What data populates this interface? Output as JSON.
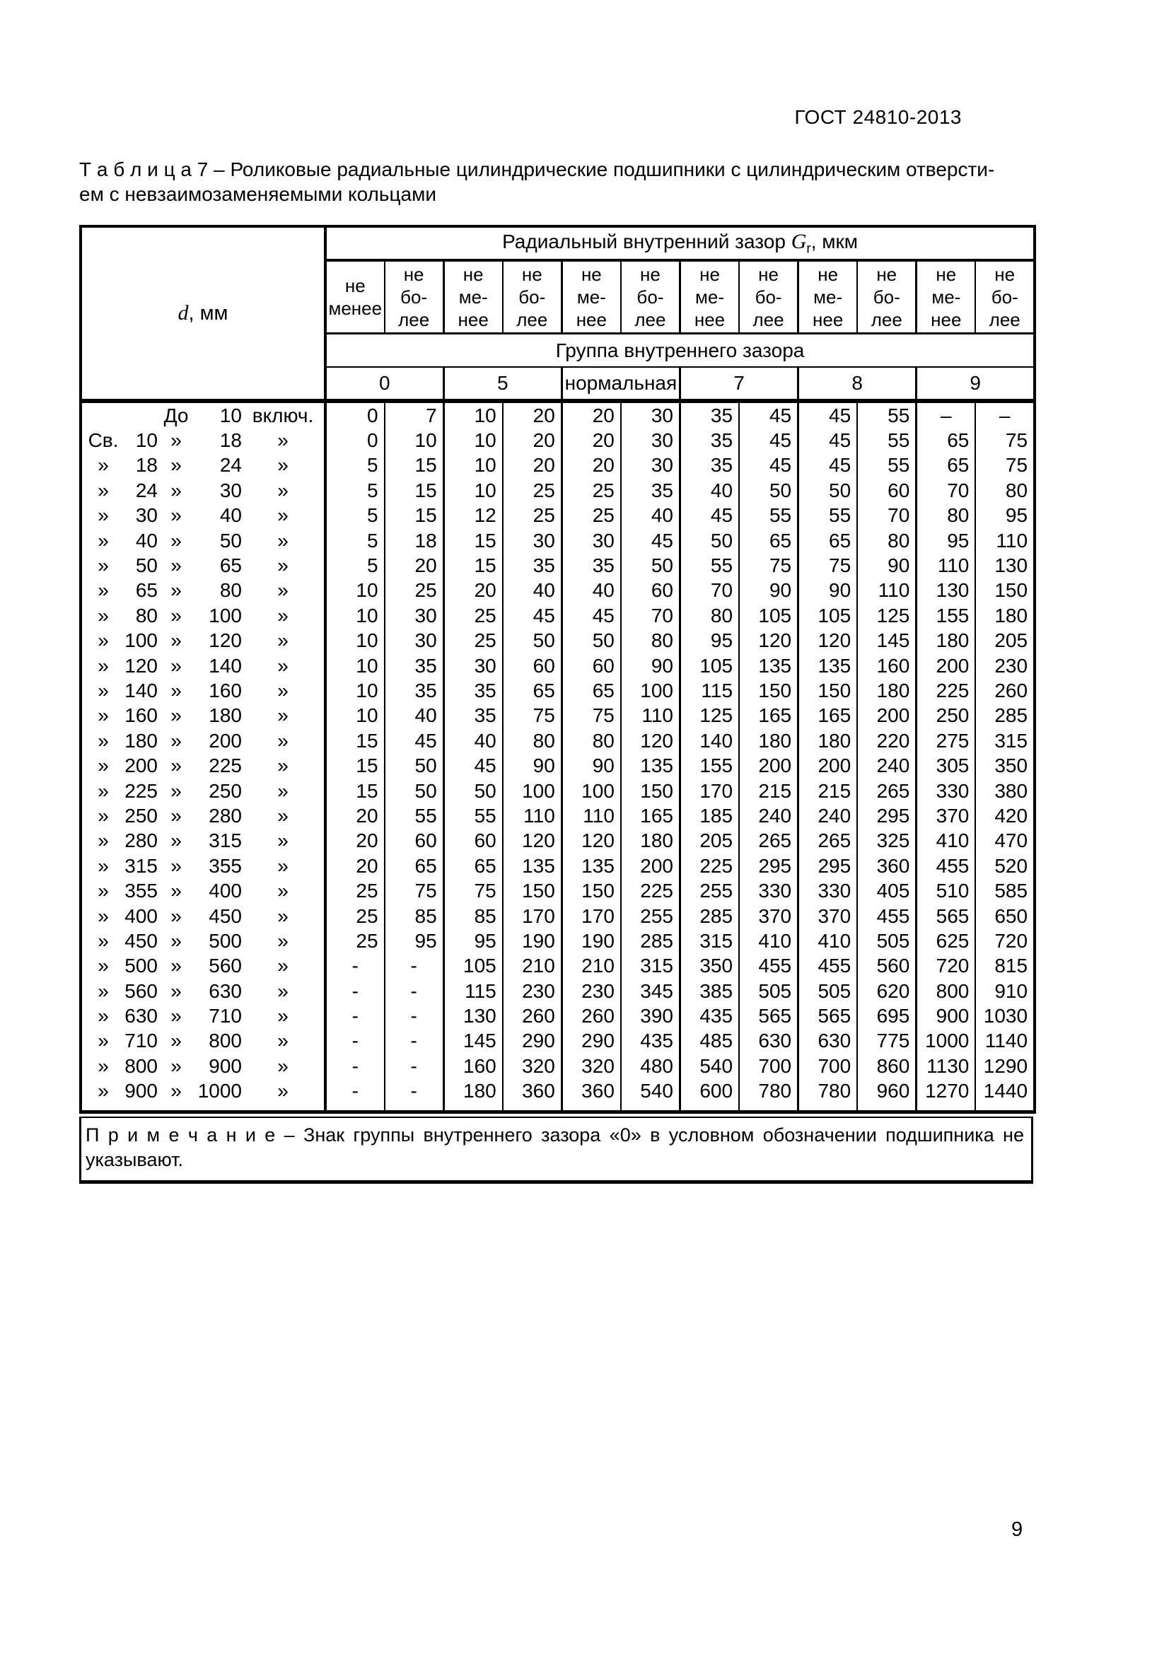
{
  "page": {
    "doc_code": "ГОСТ 24810-2013",
    "page_number": "9"
  },
  "title": {
    "line1": "Т а б л и ц а  7 – Роликовые радиальные цилиндрические подшипники с цилиндрическим отверсти-",
    "line2": "ем с невзаимозаменяемыми кольцами"
  },
  "table": {
    "d_symbol": "d",
    "d_unit": ", мм",
    "radial": {
      "prefix": "Радиальный внутренний зазор ",
      "symbol": "G",
      "sub": "r",
      "suffix": ", мкм"
    },
    "col_headers": [
      "не\nменее",
      "не\nбо-\nлее",
      "не\nме-\nнее",
      "не\nбо-\nлее",
      "не\nме-\nнее",
      "не\nбо-\nлее",
      "не\nме-\nнее",
      "не\nбо-\nлее",
      "не\nме-\nнее",
      "не\nбо-\nлее",
      "не\nме-\nнее",
      "не\nбо-\nлее"
    ],
    "group_header": "Группа внутреннего зазора",
    "groups": [
      "0",
      "5",
      "нормальная",
      "7",
      "8",
      "9"
    ],
    "rows": [
      {
        "d": [
          "",
          "",
          "До",
          "10",
          "включ."
        ],
        "v": [
          "0",
          "7",
          "10",
          "20",
          "20",
          "30",
          "35",
          "45",
          "45",
          "55",
          "–",
          "–"
        ]
      },
      {
        "d": [
          "Св.",
          "10",
          "»",
          "18",
          "»"
        ],
        "v": [
          "0",
          "10",
          "10",
          "20",
          "20",
          "30",
          "35",
          "45",
          "45",
          "55",
          "65",
          "75"
        ]
      },
      {
        "d": [
          "»",
          "18",
          "»",
          "24",
          "»"
        ],
        "v": [
          "5",
          "15",
          "10",
          "20",
          "20",
          "30",
          "35",
          "45",
          "45",
          "55",
          "65",
          "75"
        ]
      },
      {
        "d": [
          "»",
          "24",
          "»",
          "30",
          "»"
        ],
        "v": [
          "5",
          "15",
          "10",
          "25",
          "25",
          "35",
          "40",
          "50",
          "50",
          "60",
          "70",
          "80"
        ]
      },
      {
        "d": [
          "»",
          "30",
          "»",
          "40",
          "»"
        ],
        "v": [
          "5",
          "15",
          "12",
          "25",
          "25",
          "40",
          "45",
          "55",
          "55",
          "70",
          "80",
          "95"
        ]
      },
      {
        "d": [
          "»",
          "40",
          "»",
          "50",
          "»"
        ],
        "v": [
          "5",
          "18",
          "15",
          "30",
          "30",
          "45",
          "50",
          "65",
          "65",
          "80",
          "95",
          "110"
        ]
      },
      {
        "d": [
          "»",
          "50",
          "»",
          "65",
          "»"
        ],
        "v": [
          "5",
          "20",
          "15",
          "35",
          "35",
          "50",
          "55",
          "75",
          "75",
          "90",
          "110",
          "130"
        ]
      },
      {
        "d": [
          "»",
          "65",
          "»",
          "80",
          "»"
        ],
        "v": [
          "10",
          "25",
          "20",
          "40",
          "40",
          "60",
          "70",
          "90",
          "90",
          "110",
          "130",
          "150"
        ]
      },
      {
        "d": [
          "»",
          "80",
          "»",
          "100",
          "»"
        ],
        "v": [
          "10",
          "30",
          "25",
          "45",
          "45",
          "70",
          "80",
          "105",
          "105",
          "125",
          "155",
          "180"
        ]
      },
      {
        "d": [
          "»",
          "100",
          "»",
          "120",
          "»"
        ],
        "v": [
          "10",
          "30",
          "25",
          "50",
          "50",
          "80",
          "95",
          "120",
          "120",
          "145",
          "180",
          "205"
        ]
      },
      {
        "d": [
          "»",
          "120",
          "»",
          "140",
          "»"
        ],
        "v": [
          "10",
          "35",
          "30",
          "60",
          "60",
          "90",
          "105",
          "135",
          "135",
          "160",
          "200",
          "230"
        ]
      },
      {
        "d": [
          "»",
          "140",
          "»",
          "160",
          "»"
        ],
        "v": [
          "10",
          "35",
          "35",
          "65",
          "65",
          "100",
          "115",
          "150",
          "150",
          "180",
          "225",
          "260"
        ]
      },
      {
        "d": [
          "»",
          "160",
          "»",
          "180",
          "»"
        ],
        "v": [
          "10",
          "40",
          "35",
          "75",
          "75",
          "110",
          "125",
          "165",
          "165",
          "200",
          "250",
          "285"
        ]
      },
      {
        "d": [
          "»",
          "180",
          "»",
          "200",
          "»"
        ],
        "v": [
          "15",
          "45",
          "40",
          "80",
          "80",
          "120",
          "140",
          "180",
          "180",
          "220",
          "275",
          "315"
        ]
      },
      {
        "d": [
          "»",
          "200",
          "»",
          "225",
          "»"
        ],
        "v": [
          "15",
          "50",
          "45",
          "90",
          "90",
          "135",
          "155",
          "200",
          "200",
          "240",
          "305",
          "350"
        ]
      },
      {
        "d": [
          "»",
          "225",
          "»",
          "250",
          "»"
        ],
        "v": [
          "15",
          "50",
          "50",
          "100",
          "100",
          "150",
          "170",
          "215",
          "215",
          "265",
          "330",
          "380"
        ]
      },
      {
        "d": [
          "»",
          "250",
          "»",
          "280",
          "»"
        ],
        "v": [
          "20",
          "55",
          "55",
          "110",
          "110",
          "165",
          "185",
          "240",
          "240",
          "295",
          "370",
          "420"
        ]
      },
      {
        "d": [
          "»",
          "280",
          "»",
          "315",
          "»"
        ],
        "v": [
          "20",
          "60",
          "60",
          "120",
          "120",
          "180",
          "205",
          "265",
          "265",
          "325",
          "410",
          "470"
        ]
      },
      {
        "d": [
          "»",
          "315",
          "»",
          "355",
          "»"
        ],
        "v": [
          "20",
          "65",
          "65",
          "135",
          "135",
          "200",
          "225",
          "295",
          "295",
          "360",
          "455",
          "520"
        ]
      },
      {
        "d": [
          "»",
          "355",
          "»",
          "400",
          "»"
        ],
        "v": [
          "25",
          "75",
          "75",
          "150",
          "150",
          "225",
          "255",
          "330",
          "330",
          "405",
          "510",
          "585"
        ]
      },
      {
        "d": [
          "»",
          "400",
          "»",
          "450",
          "»"
        ],
        "v": [
          "25",
          "85",
          "85",
          "170",
          "170",
          "255",
          "285",
          "370",
          "370",
          "455",
          "565",
          "650"
        ]
      },
      {
        "d": [
          "»",
          "450",
          "»",
          "500",
          "»"
        ],
        "v": [
          "25",
          "95",
          "95",
          "190",
          "190",
          "285",
          "315",
          "410",
          "410",
          "505",
          "625",
          "720"
        ]
      },
      {
        "d": [
          "»",
          "500",
          "»",
          "560",
          "»"
        ],
        "v": [
          "-",
          "-",
          "105",
          "210",
          "210",
          "315",
          "350",
          "455",
          "455",
          "560",
          "720",
          "815"
        ]
      },
      {
        "d": [
          "»",
          "560",
          "»",
          "630",
          "»"
        ],
        "v": [
          "-",
          "-",
          "115",
          "230",
          "230",
          "345",
          "385",
          "505",
          "505",
          "620",
          "800",
          "910"
        ]
      },
      {
        "d": [
          "»",
          "630",
          "»",
          "710",
          "»"
        ],
        "v": [
          "-",
          "-",
          "130",
          "260",
          "260",
          "390",
          "435",
          "565",
          "565",
          "695",
          "900",
          "1030"
        ]
      },
      {
        "d": [
          "»",
          "710",
          "»",
          "800",
          "»"
        ],
        "v": [
          "-",
          "-",
          "145",
          "290",
          "290",
          "435",
          "485",
          "630",
          "630",
          "775",
          "1000",
          "1140"
        ]
      },
      {
        "d": [
          "»",
          "800",
          "»",
          "900",
          "»"
        ],
        "v": [
          "-",
          "-",
          "160",
          "320",
          "320",
          "480",
          "540",
          "700",
          "700",
          "860",
          "1130",
          "1290"
        ]
      },
      {
        "d": [
          "»",
          "900",
          "»",
          "1000",
          "»"
        ],
        "v": [
          "-",
          "-",
          "180",
          "360",
          "360",
          "540",
          "600",
          "780",
          "780",
          "960",
          "1270",
          "1440"
        ]
      }
    ]
  },
  "note": {
    "text": "П р и м е ч а н и е  – Знак группы внутреннего зазора «0» в условном обозначении подшипника не указывают."
  }
}
